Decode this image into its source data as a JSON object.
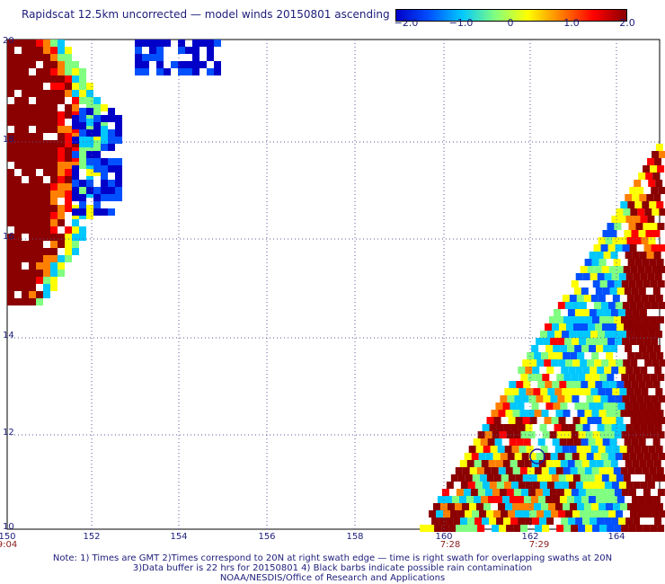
{
  "title": "Rapidscat 12.5km uncorrected — model winds 20150801 ascending",
  "colorbar": {
    "ticks": [
      "−2.0",
      "−1.0",
      "0",
      "1.0",
      "2.0"
    ],
    "colors": [
      "#0000c8",
      "#0050ff",
      "#00c8ff",
      "#80ff80",
      "#ffff00",
      "#ff8000",
      "#ff0000",
      "#8b0000"
    ]
  },
  "map": {
    "x_ticks": [
      "150",
      "152",
      "154",
      "156",
      "158",
      "160",
      "162",
      "164"
    ],
    "y_ticks": [
      "20",
      "18",
      "16",
      "14",
      "12",
      "10"
    ],
    "time_labels": [
      "9:04",
      "7:28",
      "7:29"
    ],
    "colors": {
      "background": "#ffffff",
      "grid": "#5a5a9a",
      "high": "#8b0000",
      "low": "#0000c8"
    }
  },
  "footer": {
    "line1": "Note: 1) Times are GMT 2)Times correspond to 20N at right swath edge — time is right swath for overlapping swaths at 20N",
    "line2": "3)Data buffer is 22 hrs for 20150801 4) Black barbs indicate possible rain contamination",
    "line3": "NOAA/NESDIS/Office of Research and Applications"
  }
}
